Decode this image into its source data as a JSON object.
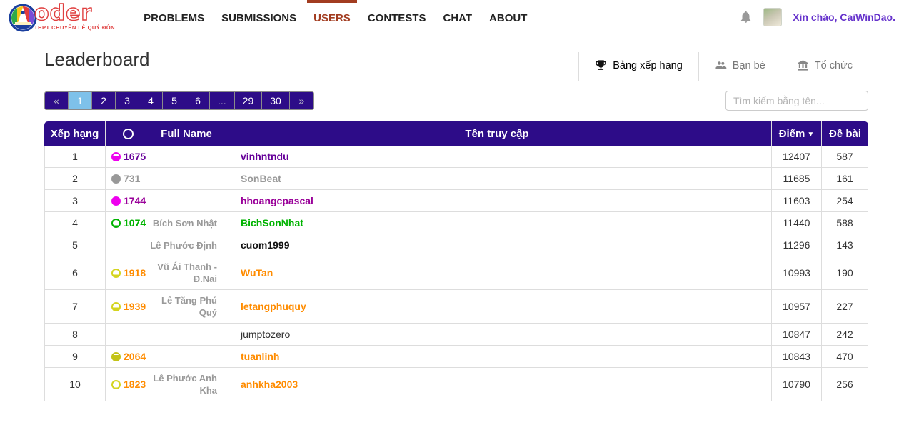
{
  "navbar": {
    "logo": {
      "word": "oder",
      "subtitle": "THPT CHUYÊN LÊ QUÝ ĐÔN"
    },
    "items": [
      {
        "label": "PROBLEMS",
        "active": false
      },
      {
        "label": "SUBMISSIONS",
        "active": false
      },
      {
        "label": "USERS",
        "active": true
      },
      {
        "label": "CONTESTS",
        "active": false
      },
      {
        "label": "CHAT",
        "active": false
      },
      {
        "label": "ABOUT",
        "active": false
      }
    ],
    "bell_icon": "bell-icon",
    "greeting": "Xin chào, CaiWinDao.",
    "accent_color": "#a23c20",
    "greeting_color": "#6633cc"
  },
  "page": {
    "title": "Leaderboard",
    "tabs": [
      {
        "label": "Bảng xếp hạng",
        "icon": "trophy-icon",
        "active": true
      },
      {
        "label": "Bạn bè",
        "icon": "users-icon",
        "active": false
      },
      {
        "label": "Tổ chức",
        "icon": "bank-icon",
        "active": false
      }
    ]
  },
  "pagination": {
    "cells": [
      {
        "label": "«",
        "type": "prev",
        "dim": true
      },
      {
        "label": "1",
        "type": "page",
        "active": true
      },
      {
        "label": "2",
        "type": "page"
      },
      {
        "label": "3",
        "type": "page"
      },
      {
        "label": "4",
        "type": "page"
      },
      {
        "label": "5",
        "type": "page"
      },
      {
        "label": "6",
        "type": "page"
      },
      {
        "label": "...",
        "type": "gap",
        "dim": true
      },
      {
        "label": "29",
        "type": "page"
      },
      {
        "label": "30",
        "type": "page"
      },
      {
        "label": "»",
        "type": "next",
        "dim": true
      }
    ],
    "bg_color": "#2d0c88",
    "active_bg": "#7ec1ea"
  },
  "search": {
    "placeholder": "Tìm kiếm bằng tên..."
  },
  "leaderboard": {
    "header_bg": "#2d0c88",
    "headers": {
      "rank": "Xếp hạng",
      "rating_icon": "rating-circle-icon",
      "full_name": "Full Name",
      "username": "Tên truy cập",
      "score": "Điểm",
      "sort_icon": "▼",
      "problems": "Đề bài"
    },
    "rows": [
      {
        "rank": "1",
        "rating": "1675",
        "circle_color": "#ee00ee",
        "circle_fill": 60,
        "full_name": "",
        "username": "vinhntndu",
        "color": "#660099",
        "bold": true,
        "score": "12407",
        "problems": "587"
      },
      {
        "rank": "2",
        "rating": "731",
        "circle_color": "#999999",
        "circle_fill": 100,
        "full_name": "",
        "username": "SonBeat",
        "color": "#999999",
        "bold": true,
        "score": "11685",
        "problems": "161"
      },
      {
        "rank": "3",
        "rating": "1744",
        "circle_color": "#ee00ee",
        "circle_fill": 100,
        "full_name": "",
        "username": "hhoangcpascal",
        "color": "#990099",
        "bold": true,
        "score": "11603",
        "problems": "254"
      },
      {
        "rank": "4",
        "rating": "1074",
        "circle_color": "#00b300",
        "circle_fill": 15,
        "full_name": "Bích Sơn Nhật",
        "username": "BichSonNhat",
        "color": "#00b300",
        "bold": true,
        "score": "11440",
        "problems": "588"
      },
      {
        "rank": "5",
        "rating": "",
        "circle_color": "",
        "circle_fill": 0,
        "full_name": "Lê Phước Định",
        "username": "cuom1999",
        "color": "#111111",
        "bold": true,
        "score": "11296",
        "problems": "143"
      },
      {
        "rank": "6",
        "rating": "1918",
        "circle_color": "#d4d41f",
        "circle_fill": 30,
        "full_name": "Vũ Ái Thanh - Đ.Nai",
        "username": "WuTan",
        "color": "#ff8c00",
        "bold": true,
        "score": "10993",
        "problems": "190"
      },
      {
        "rank": "7",
        "rating": "1939",
        "circle_color": "#d4d41f",
        "circle_fill": 38,
        "full_name": "Lê Tăng Phú Quý",
        "username": "letangphuquy",
        "color": "#ff8c00",
        "bold": true,
        "score": "10957",
        "problems": "227"
      },
      {
        "rank": "8",
        "rating": "",
        "circle_color": "",
        "circle_fill": 0,
        "full_name": "",
        "username": "jumptozero",
        "color": "#333333",
        "bold": false,
        "score": "10847",
        "problems": "242"
      },
      {
        "rank": "9",
        "rating": "2064",
        "circle_color": "#c3c318",
        "circle_fill": 78,
        "full_name": "",
        "username": "tuanlinh",
        "color": "#ff8c00",
        "bold": true,
        "score": "10843",
        "problems": "470"
      },
      {
        "rank": "10",
        "rating": "1823",
        "circle_color": "#d4d41f",
        "circle_fill": 6,
        "full_name": "Lê Phước Anh Kha",
        "username": "anhkha2003",
        "color": "#ff8c00",
        "bold": true,
        "score": "10790",
        "problems": "256"
      }
    ]
  }
}
